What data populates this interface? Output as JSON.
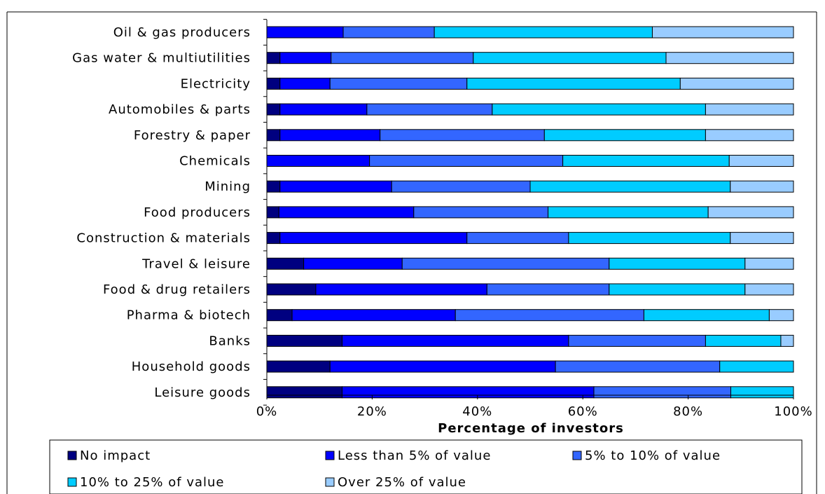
{
  "chart_data": {
    "type": "bar",
    "orientation": "horizontal",
    "stacked": "percent",
    "title": "",
    "xlabel": "Percentage of investors",
    "ylabel": "",
    "xlim": [
      0,
      100
    ],
    "x_ticks": [
      "0%",
      "20%",
      "40%",
      "60%",
      "80%",
      "100%"
    ],
    "grid": false,
    "legend_position": "bottom",
    "categories": [
      "Oil & gas producers",
      "Gas water & multiutilities",
      "Electricity",
      "Automobiles & parts",
      "Forestry & paper",
      "Chemicals",
      "Mining",
      "Food producers",
      "Construction & materials",
      "Travel & leisure",
      "Food & drug retailers",
      "Pharma & biotech",
      "Banks",
      "Household goods",
      "Leisure goods"
    ],
    "series": [
      {
        "name": "No impact",
        "color": "#000080",
        "values": [
          0,
          2.5,
          2.5,
          2.5,
          2.5,
          0,
          2.5,
          2.3,
          2.5,
          7,
          9.3,
          4.8,
          14.3,
          12,
          14.3
        ]
      },
      {
        "name": "Less than 5% of value",
        "color": "#0000FF",
        "values": [
          14.5,
          9.7,
          9.5,
          16.5,
          19,
          19.5,
          21.2,
          25.6,
          35.5,
          18.7,
          32.5,
          31,
          43,
          42.8,
          47.8
        ]
      },
      {
        "name": "5% to 10% of value",
        "color": "#3366FF",
        "values": [
          17.3,
          27,
          26,
          23.8,
          31.2,
          36.7,
          26.3,
          25.5,
          19.3,
          39.3,
          23.2,
          35.8,
          26,
          31.2,
          26
        ]
      },
      {
        "name": "10% to 25% of value",
        "color": "#00CCFF",
        "values": [
          41.4,
          36.6,
          40.5,
          40.5,
          30.6,
          31.6,
          38,
          30.4,
          30.7,
          25.8,
          25.8,
          23.8,
          14.3,
          14,
          11.9
        ]
      },
      {
        "name": "Over 25% of value",
        "color": "#99CCFF",
        "values": [
          26.8,
          24.2,
          21.5,
          16.7,
          16.7,
          12.2,
          12,
          16.2,
          12,
          9.2,
          9.2,
          4.6,
          2.4,
          0,
          0
        ]
      }
    ]
  }
}
